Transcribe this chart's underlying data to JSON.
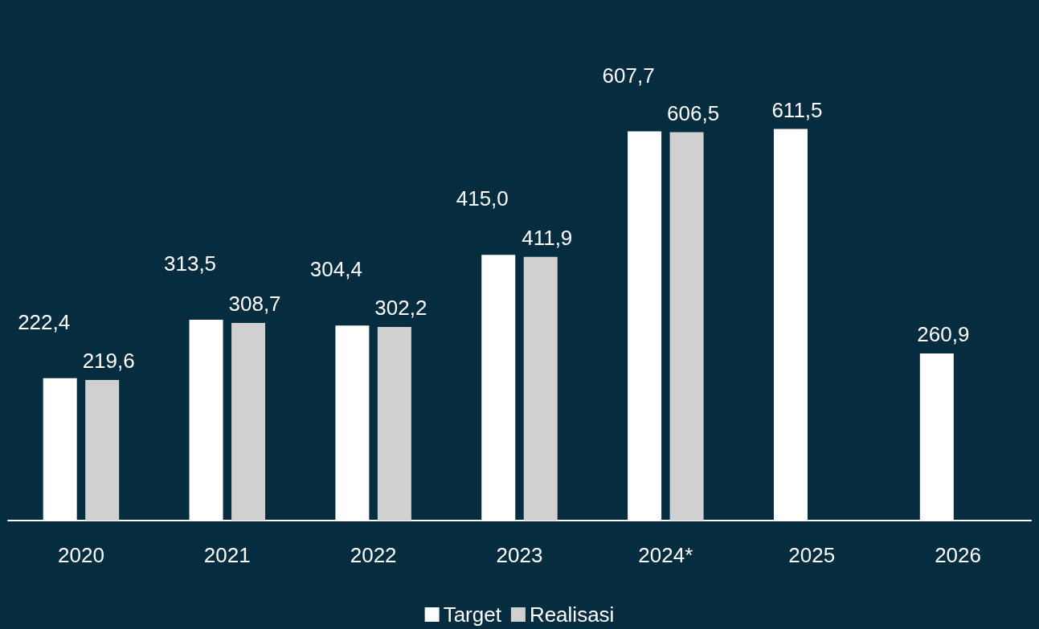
{
  "chart_data": {
    "type": "bar",
    "categories": [
      "2020",
      "2021",
      "2022",
      "2023",
      "2024*",
      "2025",
      "2026"
    ],
    "series": [
      {
        "name": "Target",
        "color": "#ffffff",
        "values": [
          222.4,
          313.5,
          304.4,
          415.0,
          607.7,
          611.5,
          260.9
        ],
        "value_labels": [
          "222,4",
          "313,5",
          "304,4",
          "415,0",
          "607,7",
          "611,5",
          "260,9"
        ]
      },
      {
        "name": "Realisasi",
        "color": "#d0d0d0",
        "values": [
          219.6,
          308.7,
          302.2,
          411.9,
          606.5,
          null,
          null
        ],
        "value_labels": [
          "219,6",
          "308,7",
          "302,2",
          "411,9",
          "606,5",
          null,
          null
        ]
      }
    ],
    "legend": "bottom",
    "grid": false
  }
}
